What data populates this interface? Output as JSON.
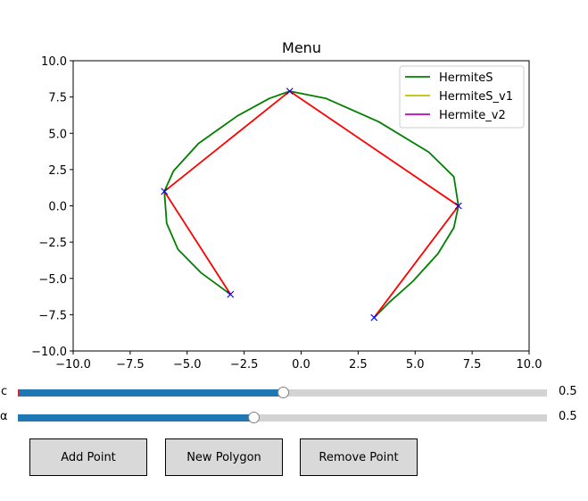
{
  "chart_data": {
    "type": "line",
    "title": "Menu",
    "xlim": [
      -10,
      10
    ],
    "ylim": [
      -10,
      10
    ],
    "xticks": [
      -10,
      -7.5,
      -5,
      -2.5,
      0,
      2.5,
      5,
      7.5,
      10
    ],
    "xtick_labels": [
      "−10.0",
      "−7.5",
      "−5.0",
      "−2.5",
      "0.0",
      "2.5",
      "5.0",
      "7.5",
      "10.0"
    ],
    "yticks": [
      10,
      7.5,
      5,
      2.5,
      0,
      -2.5,
      -5,
      -7.5,
      -10
    ],
    "ytick_labels": [
      "10.0",
      "7.5",
      "5.0",
      "2.5",
      "0.0",
      "−2.5",
      "−5.0",
      "−7.5",
      "−10.0"
    ],
    "grid": false,
    "legend_position": "top-right",
    "legend": [
      {
        "name": "HermiteS",
        "color": "#008000"
      },
      {
        "name": "HermiteS_v1",
        "color": "#bfbf00"
      },
      {
        "name": "Hermite_v2",
        "color": "#bf00bf"
      }
    ],
    "control_points": {
      "x": [
        -3.1,
        -6.0,
        -0.5,
        6.9,
        3.2
      ],
      "y": [
        -6.1,
        1.0,
        7.9,
        0.0,
        -7.7
      ],
      "color": "#0000ff",
      "marker": "x"
    },
    "polygon": {
      "x": [
        -3.1,
        -6.0,
        -0.5,
        6.9,
        3.2
      ],
      "y": [
        -6.1,
        1.0,
        7.9,
        0.0,
        -7.7
      ],
      "color": "#ff0000"
    },
    "series": [
      {
        "name": "HermiteS",
        "color": "#008000",
        "x": [
          -3.1,
          -4.4,
          -5.4,
          -5.9,
          -6.0,
          -5.6,
          -4.5,
          -2.8,
          -1.4,
          -0.5,
          1.1,
          3.4,
          5.6,
          6.7,
          6.9,
          6.7,
          6.0,
          4.9,
          3.9,
          3.2
        ],
        "y": [
          -6.1,
          -4.6,
          -3.0,
          -1.2,
          1.0,
          2.4,
          4.3,
          6.2,
          7.4,
          7.9,
          7.4,
          5.8,
          3.7,
          2.0,
          0.0,
          -1.5,
          -3.3,
          -5.2,
          -6.6,
          -7.7
        ]
      }
    ]
  },
  "sliders": [
    {
      "label": "c",
      "value_text": "0.5",
      "value": 0.5
    },
    {
      "label": "α",
      "value_text": "0.5",
      "value": 0.5
    }
  ],
  "buttons": [
    {
      "label": "Add Point"
    },
    {
      "label": "New Polygon"
    },
    {
      "label": "Remove Point"
    }
  ]
}
